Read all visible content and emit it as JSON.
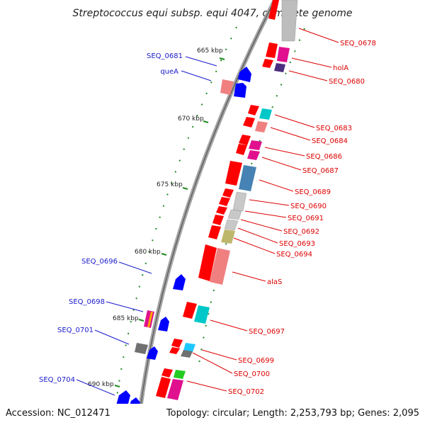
{
  "title": "Streptococcus equi subsp. equi 4047, complete genome",
  "footer": {
    "accession": "Accession: NC_012471",
    "topology": "Topology: circular; Length: 2,253,793 bp; Genes: 2,095"
  },
  "ticks": [
    "665 kbp",
    "670 kbp",
    "675 kbp",
    "680 kbp",
    "685 kbp",
    "690 kbp"
  ],
  "labels_right": [
    "SEQ_0678",
    "holA",
    "SEQ_0680",
    "SEQ_0683",
    "SEQ_0684",
    "SEQ_0686",
    "SEQ_0687",
    "SEQ_0689",
    "SEQ_0690",
    "SEQ_0691",
    "SEQ_0692",
    "SEQ_0693",
    "SEQ_0694",
    "alaS",
    "SEQ_0697",
    "SEQ_0699",
    "SEQ_0700",
    "SEQ_0702"
  ],
  "labels_left": [
    "SEQ_0681",
    "queA",
    "SEQ_0696",
    "SEQ_0698",
    "SEQ_0701",
    "SEQ_0704"
  ],
  "colors": {
    "forward_gene": "#ff0000",
    "reverse_gene": "#0000ff",
    "backbone": "#888888",
    "tick": "#228b22",
    "label_right": "#dd0000",
    "label_left": "#1a1acc"
  }
}
